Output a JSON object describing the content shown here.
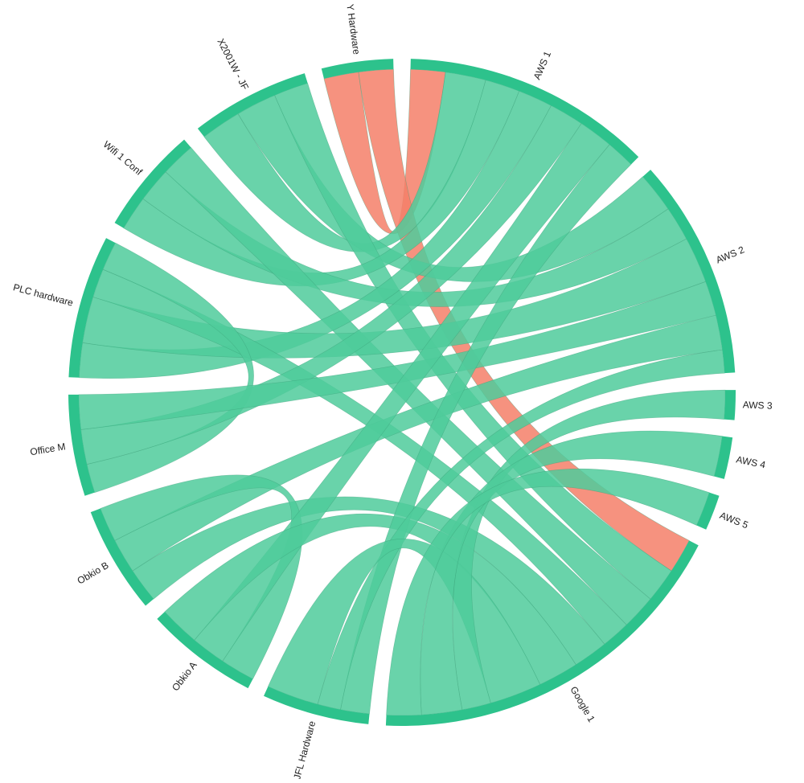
{
  "chart_data": {
    "type": "chord",
    "nodes": [
      {
        "name": "AWS 1",
        "color": "#2dc28c"
      },
      {
        "name": "AWS 2",
        "color": "#2dc28c"
      },
      {
        "name": "AWS 3",
        "color": "#2dc28c"
      },
      {
        "name": "AWS 4",
        "color": "#2dc28c"
      },
      {
        "name": "AWS 5",
        "color": "#2dc28c"
      },
      {
        "name": "Google 1",
        "color": "#2dc28c"
      },
      {
        "name": "JFL Hardware",
        "color": "#2dc28c"
      },
      {
        "name": "Obkio A",
        "color": "#2dc28c"
      },
      {
        "name": "Obkio B",
        "color": "#2dc28c"
      },
      {
        "name": "Office M",
        "color": "#2dc28c"
      },
      {
        "name": "PLC hardware",
        "color": "#2dc28c"
      },
      {
        "name": "Wifi 1 Conf",
        "color": "#2dc28c"
      },
      {
        "name": "X2001W - JF",
        "color": "#2dc28c"
      },
      {
        "name": "Y Hardware",
        "color": "#2dc28c"
      }
    ],
    "links": [
      {
        "source": 13,
        "target": 0,
        "value": 6,
        "color": "#f47f68"
      },
      {
        "source": 13,
        "target": 5,
        "value": 6,
        "color": "#f47f68"
      },
      {
        "source": 12,
        "target": 0,
        "value": 7,
        "color": "#4fcb9b"
      },
      {
        "source": 12,
        "target": 1,
        "value": 7,
        "color": "#4fcb9b"
      },
      {
        "source": 12,
        "target": 5,
        "value": 6,
        "color": "#4fcb9b"
      },
      {
        "source": 11,
        "target": 0,
        "value": 6,
        "color": "#4fcb9b"
      },
      {
        "source": 11,
        "target": 1,
        "value": 6,
        "color": "#4fcb9b"
      },
      {
        "source": 11,
        "target": 5,
        "value": 6,
        "color": "#4fcb9b"
      },
      {
        "source": 10,
        "target": 0,
        "value": 6,
        "color": "#4fcb9b"
      },
      {
        "source": 10,
        "target": 1,
        "value": 8,
        "color": "#4fcb9b"
      },
      {
        "source": 10,
        "target": 5,
        "value": 5,
        "color": "#4fcb9b"
      },
      {
        "source": 10,
        "target": 9,
        "value": 5,
        "color": "#4fcb9b"
      },
      {
        "source": 9,
        "target": 0,
        "value": 6,
        "color": "#4fcb9b"
      },
      {
        "source": 9,
        "target": 1,
        "value": 6,
        "color": "#4fcb9b"
      },
      {
        "source": 8,
        "target": 5,
        "value": 6,
        "color": "#4fcb9b"
      },
      {
        "source": 8,
        "target": 1,
        "value": 6,
        "color": "#4fcb9b"
      },
      {
        "source": 8,
        "target": 7,
        "value": 6,
        "color": "#4fcb9b"
      },
      {
        "source": 7,
        "target": 0,
        "value": 6,
        "color": "#4fcb9b"
      },
      {
        "source": 7,
        "target": 5,
        "value": 7,
        "color": "#4fcb9b"
      },
      {
        "source": 6,
        "target": 0,
        "value": 5,
        "color": "#4fcb9b"
      },
      {
        "source": 6,
        "target": 1,
        "value": 4,
        "color": "#4fcb9b"
      },
      {
        "source": 6,
        "target": 5,
        "value": 9,
        "color": "#4fcb9b"
      },
      {
        "source": 2,
        "target": 5,
        "value": 5,
        "color": "#4fcb9b"
      },
      {
        "source": 3,
        "target": 5,
        "value": 7,
        "color": "#4fcb9b"
      },
      {
        "source": 4,
        "target": 5,
        "value": 6,
        "color": "#4fcb9b"
      }
    ]
  }
}
